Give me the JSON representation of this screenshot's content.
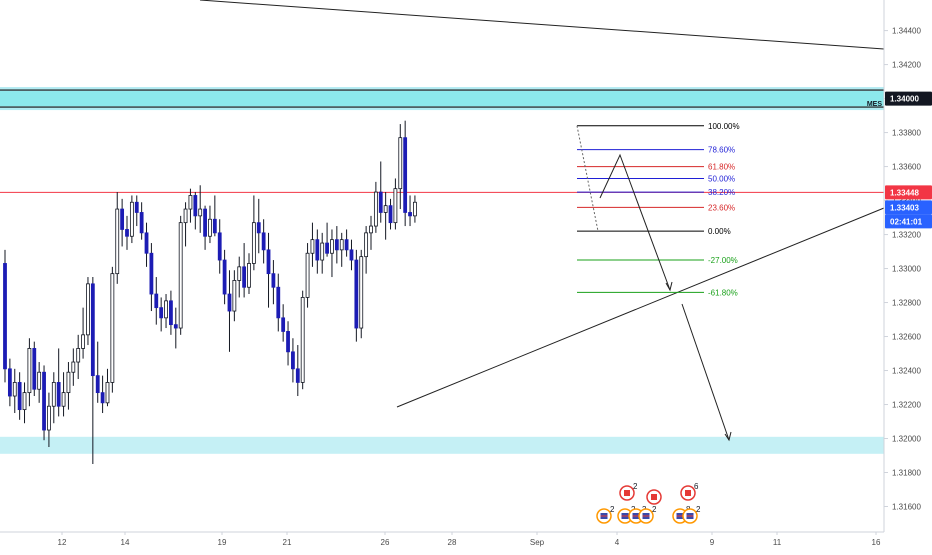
{
  "chart_data": {
    "type": "candlestick",
    "ylim": [
      1.3145,
      1.3458
    ],
    "y_ticks": [
      "1.34400",
      "1.34200",
      "1.34000",
      "1.33800",
      "1.33600",
      "1.33400",
      "1.33200",
      "1.33000",
      "1.32800",
      "1.32600",
      "1.32400",
      "1.32200",
      "1.32000",
      "1.31800",
      "1.31600"
    ],
    "x_labels": [
      "12",
      "14",
      "19",
      "21",
      "26",
      "28",
      "Sep",
      "4",
      "9",
      "11",
      "16"
    ],
    "candles": [
      [
        1.3303,
        1.3311,
        1.3233,
        1.3241
      ],
      [
        1.3241,
        1.3247,
        1.3219,
        1.3225
      ],
      [
        1.3225,
        1.3241,
        1.3215,
        1.3233
      ],
      [
        1.3233,
        1.3239,
        1.3211,
        1.3217
      ],
      [
        1.3217,
        1.3233,
        1.3209,
        1.3227
      ],
      [
        1.3227,
        1.3259,
        1.3219,
        1.3253
      ],
      [
        1.3253,
        1.3257,
        1.3225,
        1.3229
      ],
      [
        1.3229,
        1.3245,
        1.3221,
        1.3239
      ],
      [
        1.3239,
        1.3243,
        1.3199,
        1.3205
      ],
      [
        1.3205,
        1.3227,
        1.3195,
        1.3219
      ],
      [
        1.3219,
        1.3239,
        1.3209,
        1.3233
      ],
      [
        1.3233,
        1.3253,
        1.3213,
        1.3219
      ],
      [
        1.3219,
        1.3239,
        1.3213,
        1.3227
      ],
      [
        1.3227,
        1.3245,
        1.3217,
        1.3239
      ],
      [
        1.3239,
        1.3253,
        1.3231,
        1.3245
      ],
      [
        1.3245,
        1.3261,
        1.3235,
        1.3253
      ],
      [
        1.3253,
        1.3277,
        1.3247,
        1.3261
      ],
      [
        1.3261,
        1.3295,
        1.3255,
        1.3291
      ],
      [
        1.3291,
        1.3295,
        1.3185,
        1.3237
      ],
      [
        1.3237,
        1.3257,
        1.3221,
        1.3227
      ],
      [
        1.3227,
        1.3237,
        1.3215,
        1.3221
      ],
      [
        1.3221,
        1.3241,
        1.3219,
        1.3233
      ],
      [
        1.3233,
        1.3301,
        1.3227,
        1.3297
      ],
      [
        1.3297,
        1.3345,
        1.3291,
        1.3335
      ],
      [
        1.3335,
        1.3341,
        1.3313,
        1.3323
      ],
      [
        1.3323,
        1.3331,
        1.3311,
        1.3319
      ],
      [
        1.3319,
        1.3343,
        1.3315,
        1.3339
      ],
      [
        1.3339,
        1.3343,
        1.3325,
        1.3333
      ],
      [
        1.3333,
        1.3339,
        1.3317,
        1.3321
      ],
      [
        1.3321,
        1.3327,
        1.3301,
        1.3309
      ],
      [
        1.3309,
        1.3315,
        1.3275,
        1.3285
      ],
      [
        1.3285,
        1.3295,
        1.3267,
        1.3277
      ],
      [
        1.3277,
        1.3283,
        1.3263,
        1.3271
      ],
      [
        1.3271,
        1.3285,
        1.3265,
        1.3281
      ],
      [
        1.3281,
        1.3287,
        1.3261,
        1.3267
      ],
      [
        1.3267,
        1.3277,
        1.3253,
        1.3265
      ],
      [
        1.3265,
        1.3331,
        1.3261,
        1.3327
      ],
      [
        1.3327,
        1.3339,
        1.3313,
        1.3335
      ],
      [
        1.3335,
        1.3347,
        1.3327,
        1.3343
      ],
      [
        1.3343,
        1.3345,
        1.3323,
        1.3331
      ],
      [
        1.3331,
        1.3349,
        1.3321,
        1.3335
      ],
      [
        1.3335,
        1.3337,
        1.3311,
        1.3319
      ],
      [
        1.3319,
        1.3337,
        1.3315,
        1.3329
      ],
      [
        1.3329,
        1.3343,
        1.3319,
        1.3321
      ],
      [
        1.3321,
        1.3329,
        1.3297,
        1.3305
      ],
      [
        1.3305,
        1.3311,
        1.3279,
        1.3285
      ],
      [
        1.3285,
        1.3299,
        1.3251,
        1.3275
      ],
      [
        1.3275,
        1.3299,
        1.3269,
        1.3293
      ],
      [
        1.3293,
        1.3307,
        1.3283,
        1.3301
      ],
      [
        1.3301,
        1.3315,
        1.3283,
        1.3289
      ],
      [
        1.3289,
        1.3309,
        1.3285,
        1.3303
      ],
      [
        1.3303,
        1.3343,
        1.3299,
        1.3327
      ],
      [
        1.3327,
        1.3341,
        1.3309,
        1.3321
      ],
      [
        1.3321,
        1.3329,
        1.3303,
        1.3311
      ],
      [
        1.3311,
        1.3321,
        1.3277,
        1.3297
      ],
      [
        1.3297,
        1.3305,
        1.3279,
        1.3289
      ],
      [
        1.3289,
        1.3297,
        1.3263,
        1.3271
      ],
      [
        1.3271,
        1.3279,
        1.3257,
        1.3263
      ],
      [
        1.3263,
        1.3269,
        1.3243,
        1.3251
      ],
      [
        1.3251,
        1.3259,
        1.3233,
        1.3241
      ],
      [
        1.3241,
        1.3255,
        1.3225,
        1.3233
      ],
      [
        1.3233,
        1.3287,
        1.3229,
        1.3283
      ],
      [
        1.3283,
        1.3315,
        1.3277,
        1.3309
      ],
      [
        1.3309,
        1.3327,
        1.3301,
        1.3317
      ],
      [
        1.3317,
        1.3323,
        1.3297,
        1.3305
      ],
      [
        1.3305,
        1.3321,
        1.3297,
        1.3315
      ],
      [
        1.3315,
        1.3327,
        1.3307,
        1.3309
      ],
      [
        1.3309,
        1.3323,
        1.3295,
        1.3317
      ],
      [
        1.3317,
        1.3325,
        1.3303,
        1.3311
      ],
      [
        1.3311,
        1.3321,
        1.3301,
        1.3317
      ],
      [
        1.3317,
        1.3323,
        1.3307,
        1.3311
      ],
      [
        1.3311,
        1.3317,
        1.3299,
        1.3305
      ],
      [
        1.3305,
        1.3311,
        1.3257,
        1.3265
      ],
      [
        1.3265,
        1.3311,
        1.3259,
        1.3307
      ],
      [
        1.3307,
        1.3325,
        1.3297,
        1.3321
      ],
      [
        1.3321,
        1.3331,
        1.3311,
        1.3325
      ],
      [
        1.3325,
        1.3351,
        1.3321,
        1.3345
      ],
      [
        1.3345,
        1.3363,
        1.3327,
        1.3333
      ],
      [
        1.3333,
        1.3345,
        1.3317,
        1.3337
      ],
      [
        1.3337,
        1.3341,
        1.3323,
        1.3327
      ],
      [
        1.3327,
        1.3353,
        1.3323,
        1.3347
      ],
      [
        1.3347,
        1.3385,
        1.3335,
        1.3377
      ],
      [
        1.3377,
        1.3387,
        1.3325,
        1.3333
      ],
      [
        1.3333,
        1.3343,
        1.3325,
        1.3331
      ],
      [
        1.3331,
        1.3343,
        1.3327,
        1.3339
      ]
    ],
    "current_price_line": 1.33448,
    "price_badges": [
      "1.33448",
      "1.33403",
      "02:41:01"
    ],
    "resistance_zone": [
      1.3395,
      1.3405
    ],
    "resistance_badge": "1.34000",
    "resistance_tag": "MES",
    "support_zone": [
      1.3191,
      1.3201
    ],
    "fib_levels": [
      {
        "label": "100.00%",
        "price": 1.3384,
        "color": "#000000"
      },
      {
        "label": "78.60%",
        "price": 1.337,
        "color": "#1f1fd6"
      },
      {
        "label": "61.80%",
        "price": 1.336,
        "color": "#d62728"
      },
      {
        "label": "50.00%",
        "price": 1.3353,
        "color": "#1f1fd6"
      },
      {
        "label": "38.20%",
        "price": 1.3345,
        "color": "#1f1fd6"
      },
      {
        "label": "23.60%",
        "price": 1.3336,
        "color": "#d62728"
      },
      {
        "label": "0.00%",
        "price": 1.3322,
        "color": "#000000"
      },
      {
        "label": "-27.00%",
        "price": 1.3305,
        "color": "#1aa11a"
      },
      {
        "label": "-61.80%",
        "price": 1.3286,
        "color": "#1aa11a"
      }
    ],
    "event_markers": [
      {
        "flag": "ca",
        "count": "2"
      },
      {
        "flag": "us",
        "count": "2"
      },
      {
        "flag": "us",
        "count": "2"
      },
      {
        "flag": "ca",
        "count": ""
      },
      {
        "flag": "us",
        "count": "3"
      },
      {
        "flag": "us",
        "count": "2"
      },
      {
        "flag": "ca",
        "count": "6"
      },
      {
        "flag": "us",
        "count": "8"
      },
      {
        "flag": "us",
        "count": "2"
      }
    ],
    "colors": {
      "bull_body": "#ffffff",
      "bear_body": "#1c1cb4",
      "price_line": "#f23645",
      "zone": "#b2ebf2",
      "zone_strong": "#6ee7e7",
      "badge_blue": "#2962ff",
      "badge_red": "#f23645",
      "badge_dark": "#131722"
    }
  }
}
